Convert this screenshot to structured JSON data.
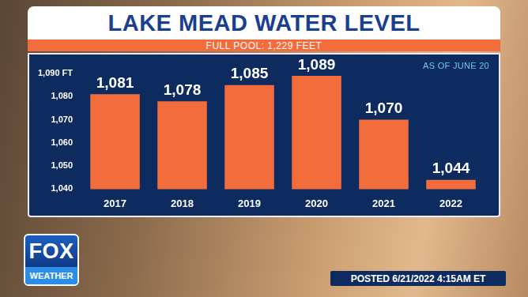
{
  "chart_data": {
    "type": "bar",
    "title": "LAKE MEAD WATER LEVEL",
    "subtitle": "FULL POOL: 1,229 FEET",
    "annotation": "AS OF JUNE 20",
    "footer": "POSTED 6/21/2022 4:15AM ET",
    "logo": {
      "top": "FOX",
      "bottom": "WEATHER"
    },
    "categories": [
      "2017",
      "2018",
      "2019",
      "2020",
      "2021",
      "2022"
    ],
    "values": [
      1081,
      1078,
      1085,
      1089,
      1070,
      1044
    ],
    "value_labels": [
      "1,081",
      "1,078",
      "1,085",
      "1,089",
      "1,070",
      "1,044"
    ],
    "color": "#f26c3c",
    "ylim": [
      1040,
      1090
    ],
    "yticks": [
      {
        "value": 1040,
        "label": "1,040"
      },
      {
        "value": 1050,
        "label": "1,050"
      },
      {
        "value": 1060,
        "label": "1,060"
      },
      {
        "value": 1070,
        "label": "1,070"
      },
      {
        "value": 1080,
        "label": "1,080"
      },
      {
        "value": 1090,
        "label": "1,090 FT"
      }
    ],
    "grid": false,
    "data_labels": true
  }
}
